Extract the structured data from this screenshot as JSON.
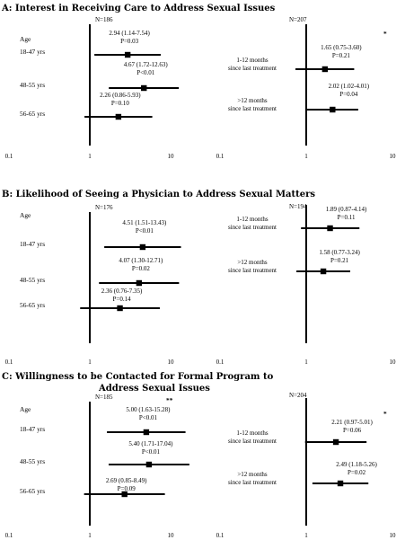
{
  "chart_data": [
    {
      "type": "forest",
      "panel_title": "A: Interest in Receiving Care to Address Sexual Issues",
      "xscale": "log",
      "xlim": [
        0.1,
        10
      ],
      "ref_line": 1,
      "xticks": [
        "0.1",
        "1",
        "10"
      ],
      "n_label": "N=186",
      "group_label": "Age",
      "significance_mark": "",
      "rows": [
        {
          "label": "18-47 yrs",
          "or": 2.94,
          "lo": 1.14,
          "hi": 7.54,
          "ci_text": "2.94 (1.14-7.54)",
          "p_text": "P=0.03"
        },
        {
          "label": "48-55 yrs",
          "or": 4.67,
          "lo": 1.72,
          "hi": 12.63,
          "ci_text": "4.67 (1.72-12.63)",
          "p_text": "P<0.01"
        },
        {
          "label": "56-65 yrs",
          "or": 2.26,
          "lo": 0.86,
          "hi": 5.93,
          "ci_text": "2.26 (0.86-5.93)",
          "p_text": "P=0.10"
        }
      ]
    },
    {
      "type": "forest",
      "panel_title": "",
      "xscale": "log",
      "xlim": [
        0.1,
        10
      ],
      "ref_line": 1,
      "xticks": [
        "0.1",
        "1",
        "10"
      ],
      "n_label": "N=207",
      "group_label": "",
      "significance_mark": "*",
      "rows": [
        {
          "label": "1-12 months since last treatment",
          "label_lines": [
            "1-12 months",
            "since last treatment"
          ],
          "or": 1.65,
          "lo": 0.75,
          "hi": 3.6,
          "ci_text": "1.65 (0.75-3.60)",
          "p_text": "P=0.21"
        },
        {
          "label": ">12 months since last treatment",
          "label_lines": [
            ">12 months",
            "since last treatment"
          ],
          "or": 2.02,
          "lo": 1.02,
          "hi": 4.01,
          "ci_text": "2.02 (1.02-4.01)",
          "p_text": "P=0.04"
        }
      ]
    },
    {
      "type": "forest",
      "panel_title": "B: Likelihood of Seeing a Physician to Address Sexual Matters",
      "xscale": "log",
      "xlim": [
        0.1,
        10
      ],
      "ref_line": 1,
      "xticks": [
        "0.1",
        "1",
        "10"
      ],
      "n_label": "N=176",
      "group_label": "Age",
      "significance_mark": "",
      "rows": [
        {
          "label": "18-47 yrs",
          "or": 4.51,
          "lo": 1.51,
          "hi": 13.43,
          "ci_text": "4.51 (1.51-13.43)",
          "p_text": "P<0.01"
        },
        {
          "label": "48-55 yrs",
          "or": 4.07,
          "lo": 1.3,
          "hi": 12.71,
          "ci_text": "4.07 (1.30-12.71)",
          "p_text": "P=0.02"
        },
        {
          "label": "56-65 yrs",
          "or": 2.36,
          "lo": 0.76,
          "hi": 7.35,
          "ci_text": "2.36 (0.76-7.35)",
          "p_text": "P=0.14"
        }
      ]
    },
    {
      "type": "forest",
      "panel_title": "",
      "xscale": "log",
      "xlim": [
        0.1,
        10
      ],
      "ref_line": 1,
      "xticks": [
        "0.1",
        "1",
        "10"
      ],
      "n_label": "N=194",
      "group_label": "",
      "significance_mark": "",
      "rows": [
        {
          "label": "1-12 months since last treatment",
          "label_lines": [
            "1-12 months",
            "since last treatment"
          ],
          "or": 1.89,
          "lo": 0.87,
          "hi": 4.14,
          "ci_text": "1.89 (0.87-4.14)",
          "p_text": "P=0.11"
        },
        {
          "label": ">12 months since last treatment",
          "label_lines": [
            ">12 months",
            "since last treatment"
          ],
          "or": 1.58,
          "lo": 0.77,
          "hi": 3.24,
          "ci_text": "1.58 (0.77-3.24)",
          "p_text": "P=0.21"
        }
      ]
    },
    {
      "type": "forest",
      "panel_title_lines": [
        "C: Willingness to be Contacted for Formal Program to",
        "Address Sexual Issues"
      ],
      "xscale": "log",
      "xlim": [
        0.1,
        10
      ],
      "ref_line": 1,
      "xticks": [
        "0.1",
        "1",
        "10"
      ],
      "n_label": "N=185",
      "group_label": "Age",
      "significance_mark": "**",
      "rows": [
        {
          "label": "18-47 yrs",
          "or": 5.0,
          "lo": 1.63,
          "hi": 15.28,
          "ci_text": "5.00 (1.63-15.28)",
          "p_text": "P<0.01"
        },
        {
          "label": "48-55 yrs",
          "or": 5.4,
          "lo": 1.71,
          "hi": 17.04,
          "ci_text": "5.40 (1.71-17.04)",
          "p_text": "P<0.01"
        },
        {
          "label": "56-65 yrs",
          "or": 2.69,
          "lo": 0.85,
          "hi": 8.49,
          "ci_text": "2.69 (0.85-8.49)",
          "p_text": "P=0.09"
        }
      ]
    },
    {
      "type": "forest",
      "panel_title": "",
      "xscale": "log",
      "xlim": [
        0.1,
        10
      ],
      "ref_line": 1,
      "xticks": [
        "0.1",
        "1",
        "10"
      ],
      "n_label": "N=204",
      "group_label": "",
      "significance_mark": "*",
      "rows": [
        {
          "label": "1-12 months since last treatment",
          "label_lines": [
            "1-12 months",
            "since last treatment"
          ],
          "or": 2.21,
          "lo": 0.97,
          "hi": 5.01,
          "ci_text": "2.21 (0.97-5.01)",
          "p_text": "P=0.06"
        },
        {
          "label": ">12 months since last treatment",
          "label_lines": [
            ">12 months",
            "since last treatment"
          ],
          "or": 2.49,
          "lo": 1.18,
          "hi": 5.26,
          "ci_text": "2.49 (1.18-5.26)",
          "p_text": "P=0.02"
        }
      ]
    }
  ]
}
